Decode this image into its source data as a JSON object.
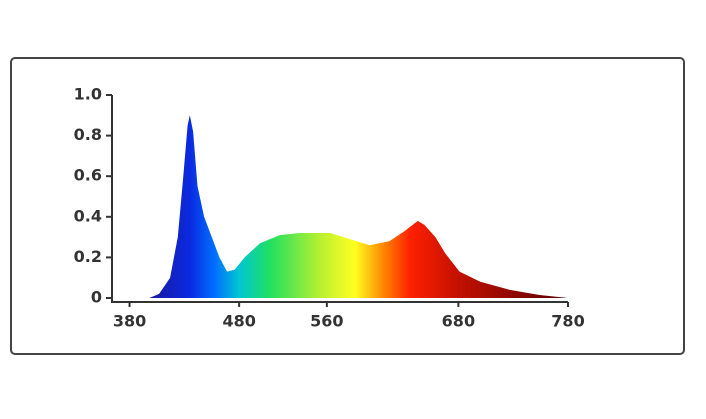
{
  "chart_data": {
    "type": "area",
    "x": [
      398,
      407,
      417,
      424,
      429,
      433,
      435,
      438,
      442,
      448,
      455,
      462,
      469,
      476,
      485,
      499,
      517,
      535,
      563,
      581,
      599,
      617,
      631,
      643,
      649,
      659,
      668,
      681,
      700,
      727,
      754,
      780
    ],
    "values": [
      0,
      0.02,
      0.1,
      0.3,
      0.6,
      0.85,
      0.9,
      0.82,
      0.55,
      0.4,
      0.3,
      0.2,
      0.13,
      0.14,
      0.2,
      0.27,
      0.31,
      0.32,
      0.32,
      0.29,
      0.26,
      0.28,
      0.33,
      0.38,
      0.36,
      0.3,
      0.22,
      0.13,
      0.08,
      0.04,
      0.015,
      0
    ],
    "xlim": [
      364,
      780
    ],
    "xticks": [
      380,
      480,
      560,
      680,
      780
    ],
    "ylim": [
      0,
      1.0
    ],
    "yticks": [
      0,
      0.2,
      0.4,
      0.6,
      0.8,
      {
        "value": 1.0,
        "label": "1.0"
      }
    ]
  }
}
